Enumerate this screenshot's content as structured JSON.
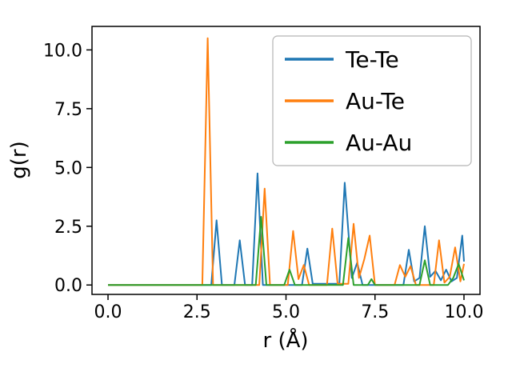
{
  "figure": {
    "background": "#ffffff"
  },
  "chart_data": {
    "type": "line",
    "title": "",
    "xlabel": "r (Å)",
    "ylabel": "g(r)",
    "xlim": [
      -0.45,
      10.45
    ],
    "ylim": [
      -0.4,
      11.0
    ],
    "x_ticks": [
      0.0,
      2.5,
      5.0,
      7.5,
      10.0
    ],
    "x_tick_labels": [
      "0.0",
      "2.5",
      "5.0",
      "7.5",
      "10.0"
    ],
    "y_ticks": [
      0.0,
      2.5,
      5.0,
      7.5,
      10.0
    ],
    "y_tick_labels": [
      "0.0",
      "2.5",
      "5.0",
      "7.5",
      "10.0"
    ],
    "grid": false,
    "legend": {
      "position": "upper right",
      "entries": [
        "Te-Te",
        "Au-Te",
        "Au-Au"
      ]
    },
    "series": [
      {
        "name": "Te-Te",
        "color": "#1f77b4",
        "points": [
          [
            0.0,
            0
          ],
          [
            2.9,
            0
          ],
          [
            3.05,
            2.75
          ],
          [
            3.2,
            0
          ],
          [
            3.55,
            0
          ],
          [
            3.7,
            1.9
          ],
          [
            3.85,
            0
          ],
          [
            4.05,
            0
          ],
          [
            4.2,
            4.75
          ],
          [
            4.35,
            0
          ],
          [
            5.45,
            0
          ],
          [
            5.6,
            1.55
          ],
          [
            5.75,
            0.05
          ],
          [
            6.5,
            0.05
          ],
          [
            6.65,
            4.35
          ],
          [
            6.85,
            0.3
          ],
          [
            7.0,
            0.95
          ],
          [
            7.15,
            0
          ],
          [
            8.3,
            0
          ],
          [
            8.45,
            1.5
          ],
          [
            8.6,
            0.15
          ],
          [
            8.75,
            0.3
          ],
          [
            8.9,
            2.5
          ],
          [
            9.05,
            0.35
          ],
          [
            9.2,
            0.6
          ],
          [
            9.35,
            0.2
          ],
          [
            9.5,
            0.65
          ],
          [
            9.65,
            0.15
          ],
          [
            9.8,
            0.3
          ],
          [
            9.95,
            2.1
          ],
          [
            10.0,
            1.0
          ]
        ]
      },
      {
        "name": "Au-Te",
        "color": "#ff7f0e",
        "points": [
          [
            0.0,
            0
          ],
          [
            2.65,
            0
          ],
          [
            2.8,
            10.5
          ],
          [
            2.95,
            0
          ],
          [
            4.25,
            0
          ],
          [
            4.4,
            4.1
          ],
          [
            4.55,
            0
          ],
          [
            5.05,
            0
          ],
          [
            5.2,
            2.3
          ],
          [
            5.35,
            0.25
          ],
          [
            5.5,
            0.85
          ],
          [
            5.65,
            0
          ],
          [
            6.15,
            0
          ],
          [
            6.3,
            2.4
          ],
          [
            6.45,
            0.05
          ],
          [
            6.75,
            0.05
          ],
          [
            6.9,
            2.6
          ],
          [
            7.05,
            0.3
          ],
          [
            7.2,
            1.1
          ],
          [
            7.35,
            2.1
          ],
          [
            7.5,
            0
          ],
          [
            8.05,
            0
          ],
          [
            8.2,
            0.85
          ],
          [
            8.35,
            0.35
          ],
          [
            8.5,
            0.8
          ],
          [
            8.65,
            0
          ],
          [
            9.15,
            0
          ],
          [
            9.3,
            1.9
          ],
          [
            9.45,
            0.1
          ],
          [
            9.6,
            0.35
          ],
          [
            9.75,
            1.6
          ],
          [
            9.9,
            0.15
          ],
          [
            10.0,
            0.9
          ]
        ]
      },
      {
        "name": "Au-Au",
        "color": "#2ca02c",
        "points": [
          [
            0.0,
            0
          ],
          [
            4.15,
            0
          ],
          [
            4.3,
            2.9
          ],
          [
            4.45,
            0
          ],
          [
            4.95,
            0
          ],
          [
            5.1,
            0.65
          ],
          [
            5.25,
            0
          ],
          [
            6.6,
            0
          ],
          [
            6.75,
            2.0
          ],
          [
            6.9,
            0
          ],
          [
            7.3,
            0
          ],
          [
            7.4,
            0.25
          ],
          [
            7.5,
            0
          ],
          [
            8.75,
            0
          ],
          [
            8.9,
            1.05
          ],
          [
            9.05,
            0
          ],
          [
            9.55,
            0
          ],
          [
            9.7,
            0.3
          ],
          [
            9.85,
            0.9
          ],
          [
            10.0,
            0.2
          ]
        ]
      }
    ]
  },
  "style": {
    "axis_color": "#000000",
    "legend_border_color": "#b4b4b4",
    "legend_bg": "#ffffff"
  }
}
